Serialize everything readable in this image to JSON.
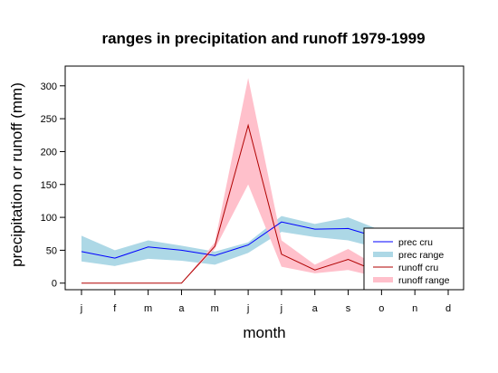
{
  "chart_data": {
    "type": "line",
    "title": "ranges in precipitation and runoff 1979-1999",
    "xlabel": "month",
    "ylabel": "precipitation or runoff (mm)",
    "categories": [
      "j",
      "f",
      "m",
      "a",
      "m",
      "j",
      "j",
      "a",
      "s",
      "o",
      "n",
      "d"
    ],
    "ylim": [
      -10,
      330
    ],
    "yticks": [
      0,
      50,
      100,
      150,
      200,
      250,
      300
    ],
    "grid": false,
    "legend_position": "bottom-right",
    "series": [
      {
        "name": "prec cru",
        "kind": "line",
        "color": "#0000ff",
        "values": [
          48,
          38,
          55,
          50,
          42,
          58,
          93,
          82,
          83,
          68,
          62,
          60
        ]
      },
      {
        "name": "prec range",
        "kind": "band",
        "color": "#add8e6",
        "lower": [
          33,
          26,
          37,
          34,
          28,
          46,
          78,
          70,
          65,
          52,
          48,
          46
        ],
        "upper": [
          72,
          50,
          65,
          57,
          48,
          62,
          102,
          90,
          100,
          80,
          76,
          74
        ]
      },
      {
        "name": "runoff cru",
        "kind": "line",
        "color": "#b00000",
        "values": [
          0,
          0,
          0,
          0,
          56,
          240,
          44,
          20,
          36,
          15,
          12,
          8
        ]
      },
      {
        "name": "runoff range",
        "kind": "band",
        "color": "#ffc0cb",
        "lower": [
          0,
          0,
          0,
          0,
          52,
          150,
          25,
          15,
          20,
          8,
          5,
          3
        ],
        "upper": [
          0,
          0,
          0,
          0,
          62,
          312,
          65,
          28,
          52,
          22,
          18,
          12
        ]
      }
    ]
  }
}
